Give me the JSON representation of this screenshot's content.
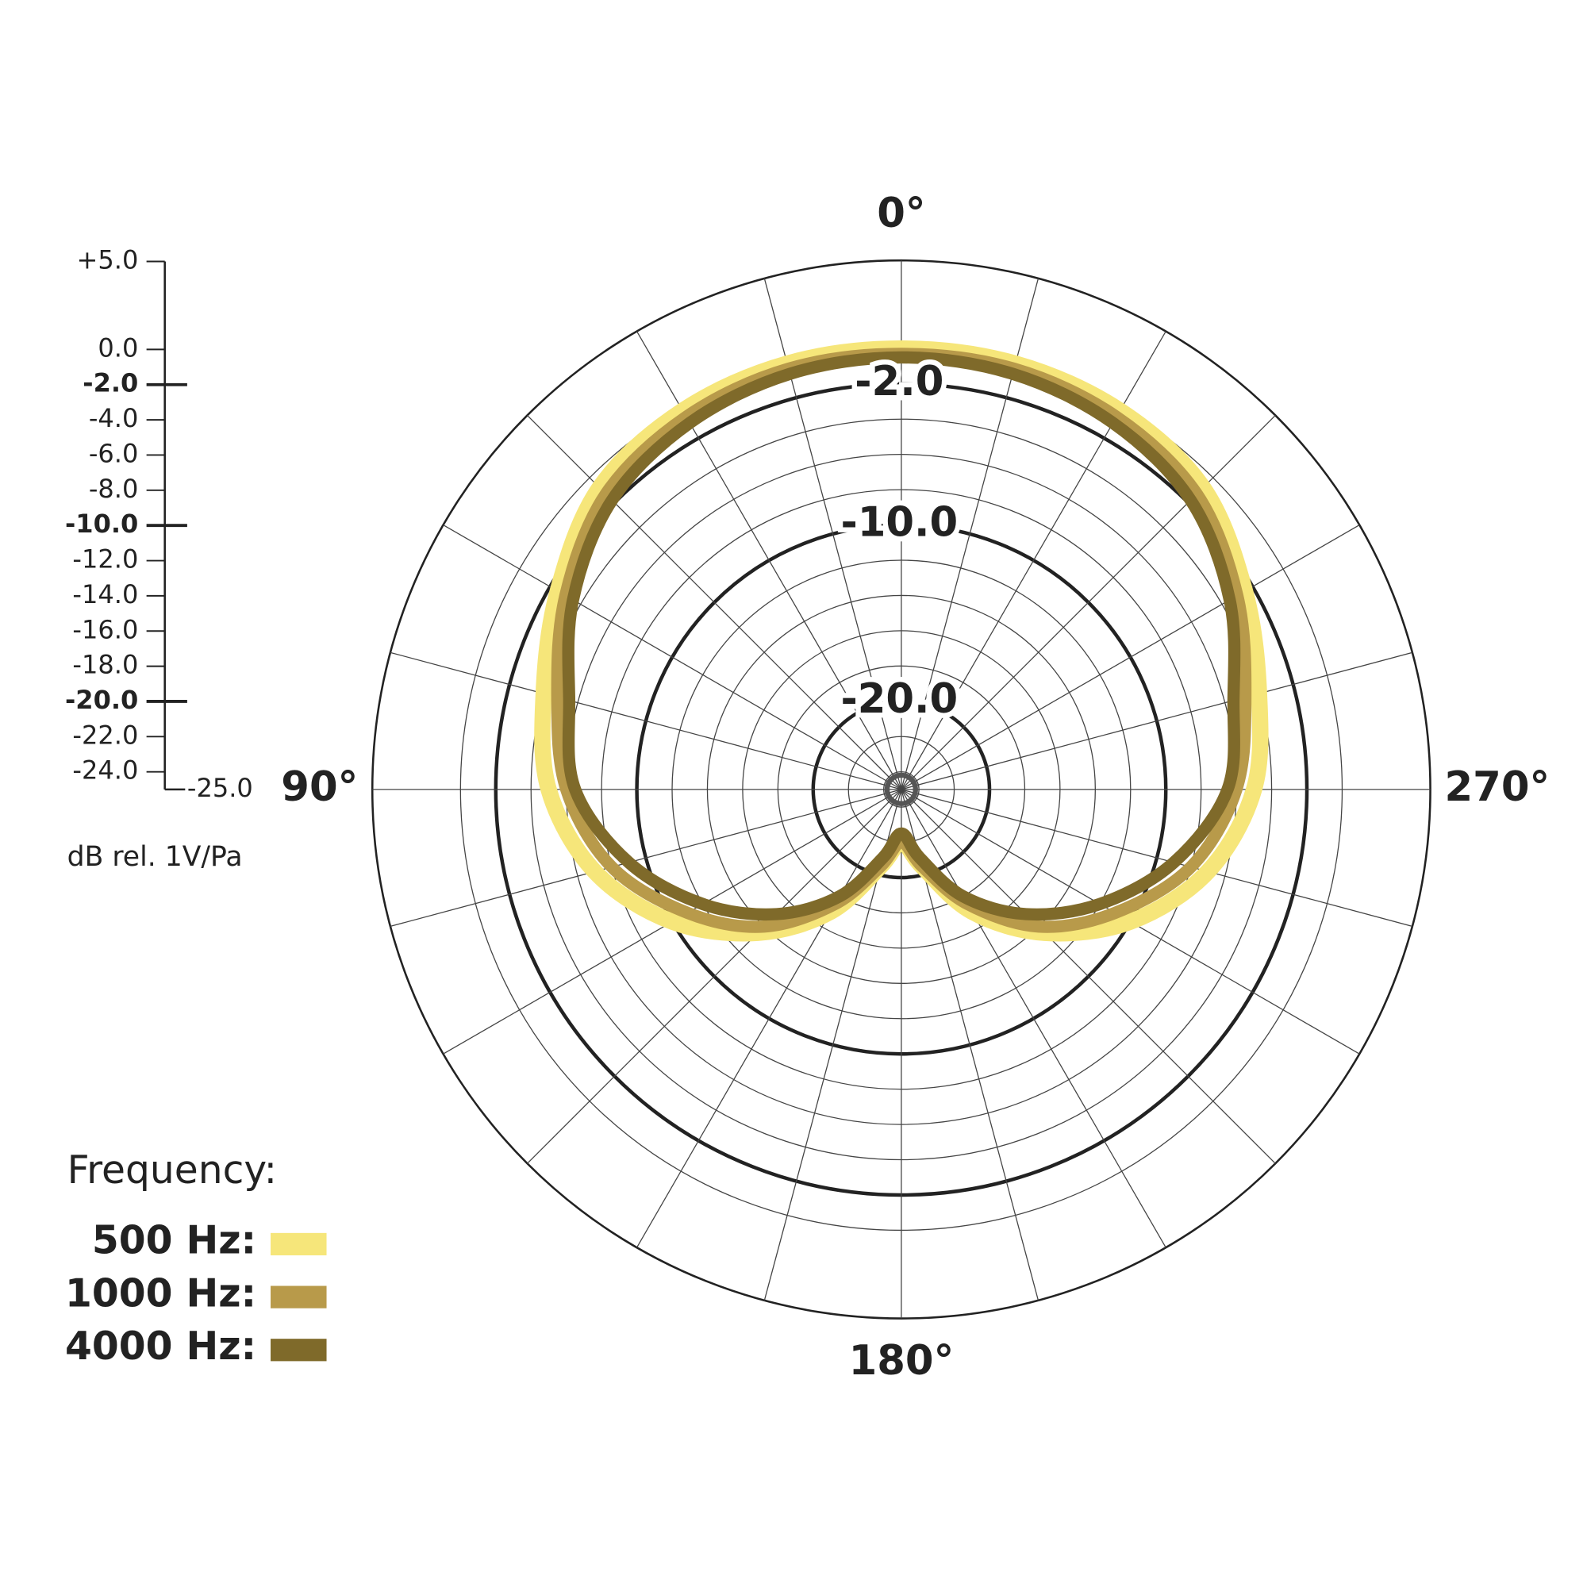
{
  "chart_data": {
    "type": "polar",
    "axis_label": "dB rel. 1V/Pa",
    "legend_title": "Frequency:",
    "x": [
      0,
      15,
      30,
      45,
      60,
      75,
      90,
      105,
      120,
      135,
      150,
      165,
      180,
      195,
      210,
      225,
      240,
      255,
      270,
      285,
      300,
      315,
      330,
      345
    ],
    "xticks": [
      {
        "value": 0,
        "label": "0°"
      },
      {
        "value": 90,
        "label": "90°"
      },
      {
        "value": 180,
        "label": "180°"
      },
      {
        "value": 270,
        "label": "270°"
      }
    ],
    "ylim": [
      -25,
      5
    ],
    "yticks": [
      {
        "value": 5,
        "label": "+5.0"
      },
      {
        "value": 0,
        "label": "0.0"
      },
      {
        "value": -2,
        "label": "-2.0"
      },
      {
        "value": -4,
        "label": "-4.0"
      },
      {
        "value": -6,
        "label": "-6.0"
      },
      {
        "value": -8,
        "label": "-8.0"
      },
      {
        "value": -10,
        "label": "-10.0"
      },
      {
        "value": -12,
        "label": "-12.0"
      },
      {
        "value": -14,
        "label": "-14.0"
      },
      {
        "value": -16,
        "label": "-16.0"
      },
      {
        "value": -18,
        "label": "-18.0"
      },
      {
        "value": -20,
        "label": "-20.0"
      },
      {
        "value": -22,
        "label": "-22.0"
      },
      {
        "value": -24,
        "label": "-24.0"
      },
      {
        "value": -25,
        "label": "-25.0"
      }
    ],
    "ring_labels": [
      {
        "value": -2,
        "label": "-2.0"
      },
      {
        "value": -10,
        "label": "-10.0"
      },
      {
        "value": -20,
        "label": "-20.0"
      }
    ],
    "series": [
      {
        "name": "500 Hz:",
        "color": "#f6e67a",
        "values": [
          0,
          0,
          -0.2,
          -0.8,
          -2.5,
          -4,
          -5,
          -7,
          -10,
          -13.5,
          -17,
          -20.5,
          -22,
          -20.5,
          -17,
          -13.5,
          -10,
          -7,
          -5,
          -4,
          -2.5,
          -0.8,
          -0.2,
          0
        ]
      },
      {
        "name": "1000 Hz:",
        "color": "#b89a4a",
        "values": [
          -0.3,
          -0.3,
          -0.6,
          -1.3,
          -3,
          -4.8,
          -6,
          -8,
          -11,
          -14,
          -17.5,
          -20.5,
          -22,
          -20.5,
          -17.5,
          -14,
          -11,
          -8,
          -6,
          -4.8,
          -3,
          -1.3,
          -0.6,
          -0.3
        ]
      },
      {
        "name": "4000 Hz:",
        "color": "#7f6a2a",
        "values": [
          -0.5,
          -0.6,
          -1,
          -1.8,
          -3.5,
          -5.5,
          -6.5,
          -9,
          -12,
          -15,
          -18,
          -21,
          -22.5,
          -21,
          -18,
          -15,
          -12,
          -9,
          -6.5,
          -5.5,
          -3.5,
          -1.8,
          -1,
          -0.6
        ]
      }
    ]
  }
}
